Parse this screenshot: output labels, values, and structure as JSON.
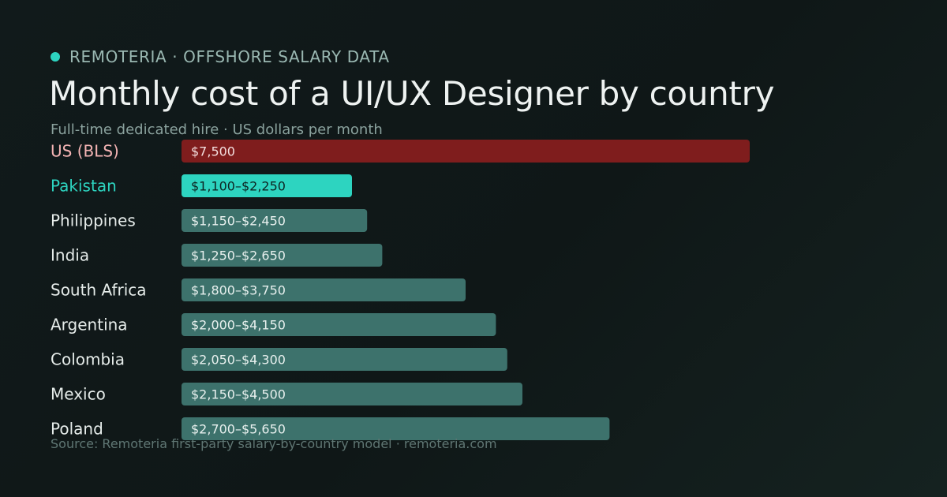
{
  "header": {
    "brand": "REMOTERIA · OFFSHORE SALARY DATA",
    "title": "Monthly cost of a UI/UX Designer by country",
    "subtitle": "Full-time dedicated hire · US dollars per month"
  },
  "footer": {
    "source": "Source: Remoteria first-party salary-by-country model · remoteria.com"
  },
  "colors": {
    "background": "#111a1b",
    "accent": "#2dd4c0",
    "benchmark": "#7f1d1d",
    "bar": "#3d726c",
    "label": "#e6ecea",
    "benchmark_label": "#f5b5b5"
  },
  "chart_data": {
    "type": "bar",
    "orientation": "horizontal",
    "x_axis": "US dollars per month",
    "xlim": [
      0,
      7500
    ],
    "grid": false,
    "legend": "none",
    "bars": [
      {
        "country": "US (BLS)",
        "low": 7500,
        "high": 7500,
        "label": "$7,500",
        "role": "benchmark"
      },
      {
        "country": "Pakistan",
        "low": 1100,
        "high": 2250,
        "label": "$1,100–$2,250",
        "role": "highlight"
      },
      {
        "country": "Philippines",
        "low": 1150,
        "high": 2450,
        "label": "$1,150–$2,450",
        "role": "normal"
      },
      {
        "country": "India",
        "low": 1250,
        "high": 2650,
        "label": "$1,250–$2,650",
        "role": "normal"
      },
      {
        "country": "South Africa",
        "low": 1800,
        "high": 3750,
        "label": "$1,800–$3,750",
        "role": "normal"
      },
      {
        "country": "Argentina",
        "low": 2000,
        "high": 4150,
        "label": "$2,000–$4,150",
        "role": "normal"
      },
      {
        "country": "Colombia",
        "low": 2050,
        "high": 4300,
        "label": "$2,050–$4,300",
        "role": "normal"
      },
      {
        "country": "Mexico",
        "low": 2150,
        "high": 4500,
        "label": "$2,150–$4,500",
        "role": "normal"
      },
      {
        "country": "Poland",
        "low": 2700,
        "high": 5650,
        "label": "$2,700–$5,650",
        "role": "normal"
      }
    ]
  }
}
